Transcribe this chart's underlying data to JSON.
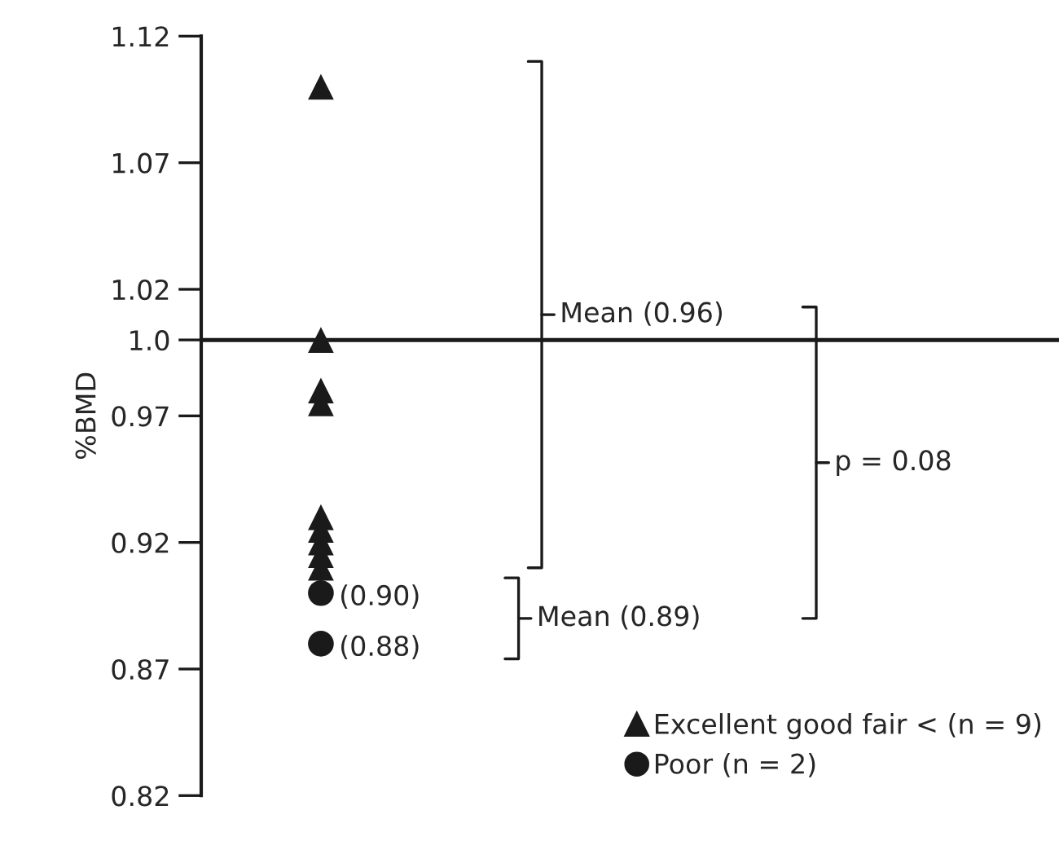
{
  "chart_data": {
    "type": "scatter",
    "ylabel": "%BMD",
    "categories": [
      null
    ],
    "series": [
      {
        "name": "Excellent good fair < (n = 9)",
        "color": "#1a1a1a",
        "marker": "triangle",
        "x": [
          null,
          null,
          null,
          null,
          null,
          null,
          null,
          null,
          null
        ],
        "values": [
          1.1,
          1.0,
          0.98,
          0.975,
          0.93,
          0.925,
          0.92,
          0.915,
          0.91
        ]
      },
      {
        "name": "Poor (n = 2)",
        "color": "#1a1a1a",
        "marker": "circle",
        "x": [
          null,
          null
        ],
        "values": [
          0.9,
          0.88
        ],
        "value_labels": [
          "(0.90)",
          "(0.88)"
        ]
      }
    ],
    "ylim": [
      0.82,
      1.12
    ],
    "yticks": [
      0.82,
      0.87,
      0.92,
      0.97,
      {
        "value": 1.0,
        "label": "1.0"
      },
      1.02,
      1.07,
      1.12
    ],
    "ref_lines": [
      {
        "axis": "y",
        "value": 1.0,
        "color": "#1a1a1a"
      }
    ],
    "annotations": [
      "Mean (0.96)",
      "Mean (0.89)",
      "p = 0.08"
    ],
    "legend": "bottom right",
    "grid": false
  }
}
